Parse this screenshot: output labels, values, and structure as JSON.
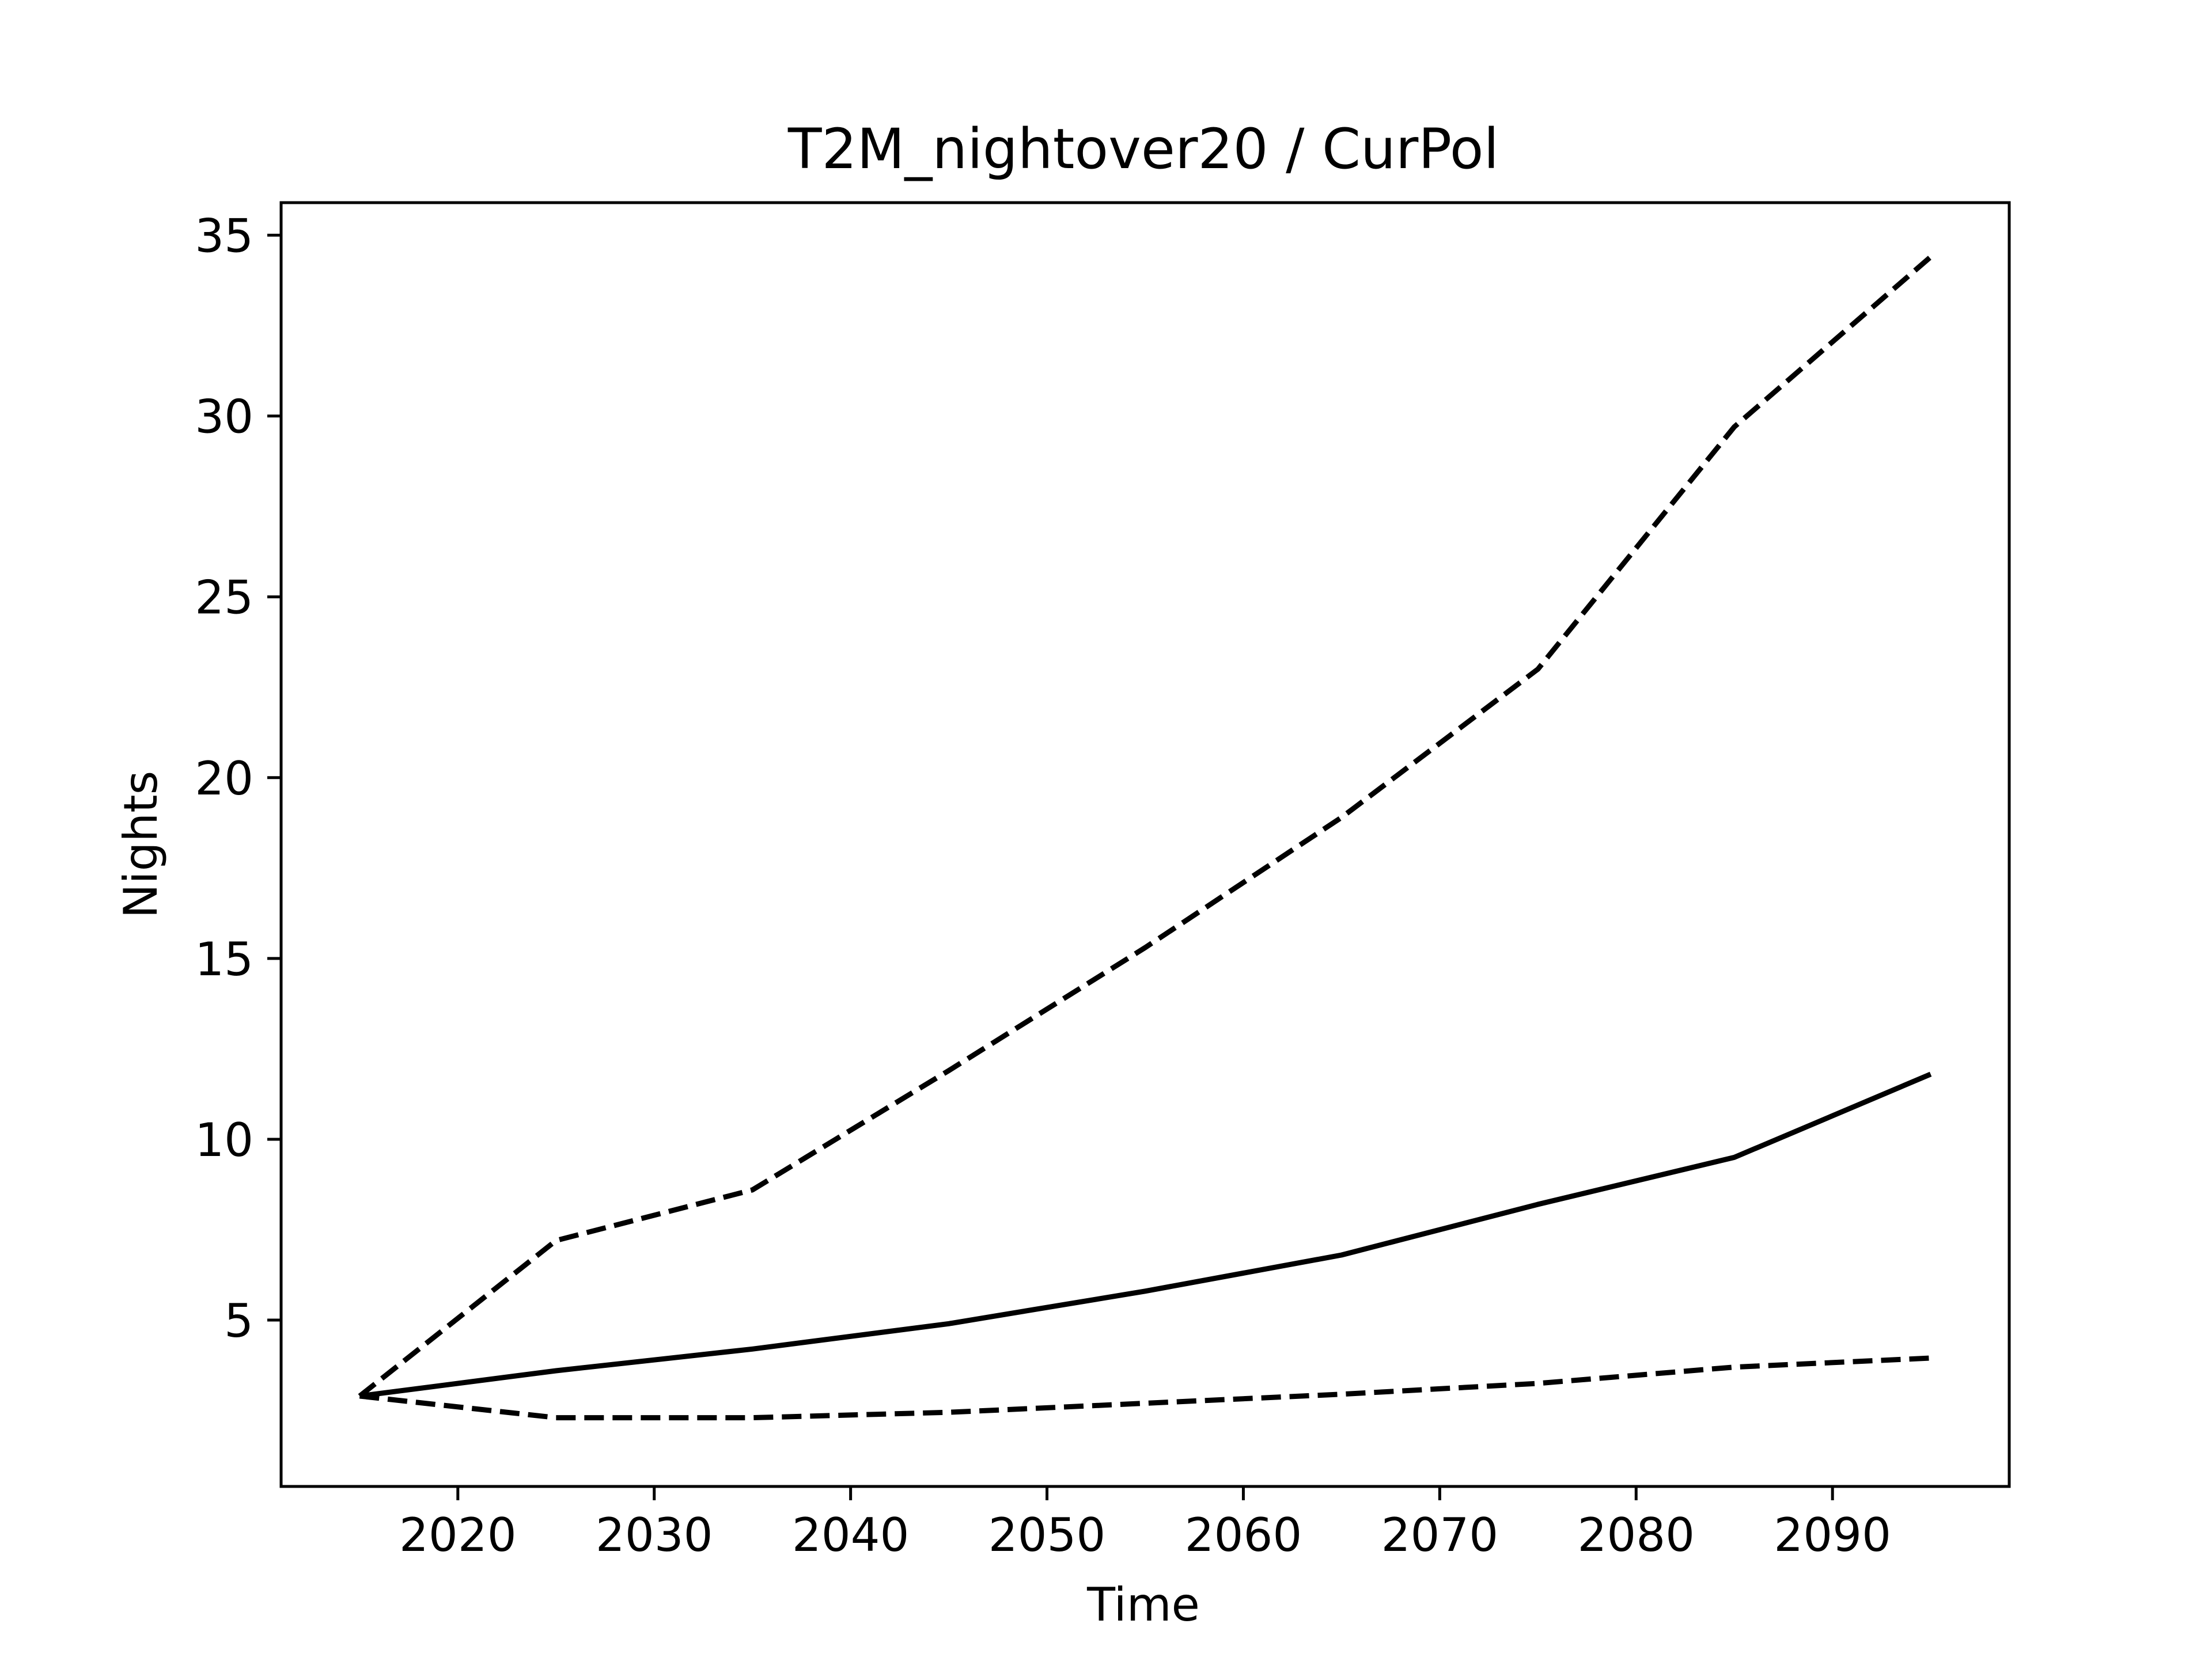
{
  "chart_data": {
    "type": "line",
    "title": "T2M_nightover20 / CurPol",
    "xlabel": "Time",
    "ylabel": "Nights",
    "xlim": [
      2011,
      2099
    ],
    "ylim": [
      0.4,
      35.9
    ],
    "xticks": [
      2020,
      2030,
      2040,
      2050,
      2060,
      2070,
      2080,
      2090
    ],
    "yticks": [
      5,
      10,
      15,
      20,
      25,
      30,
      35
    ],
    "grid": false,
    "x": [
      2015,
      2025,
      2035,
      2045,
      2055,
      2065,
      2075,
      2085,
      2095
    ],
    "series": [
      {
        "line_style": "solid",
        "color": "#000000",
        "values": [
          2.9,
          3.6,
          4.2,
          4.9,
          5.8,
          6.8,
          8.2,
          9.5,
          11.8
        ]
      },
      {
        "line_style": "dashed",
        "color": "#000000",
        "values": [
          2.9,
          7.2,
          8.6,
          11.9,
          15.3,
          18.9,
          23.0,
          29.7,
          34.4
        ]
      },
      {
        "line_style": "dashed",
        "color": "#000000",
        "values": [
          2.9,
          2.3,
          2.3,
          2.45,
          2.7,
          2.95,
          3.25,
          3.7,
          3.95
        ]
      }
    ]
  }
}
